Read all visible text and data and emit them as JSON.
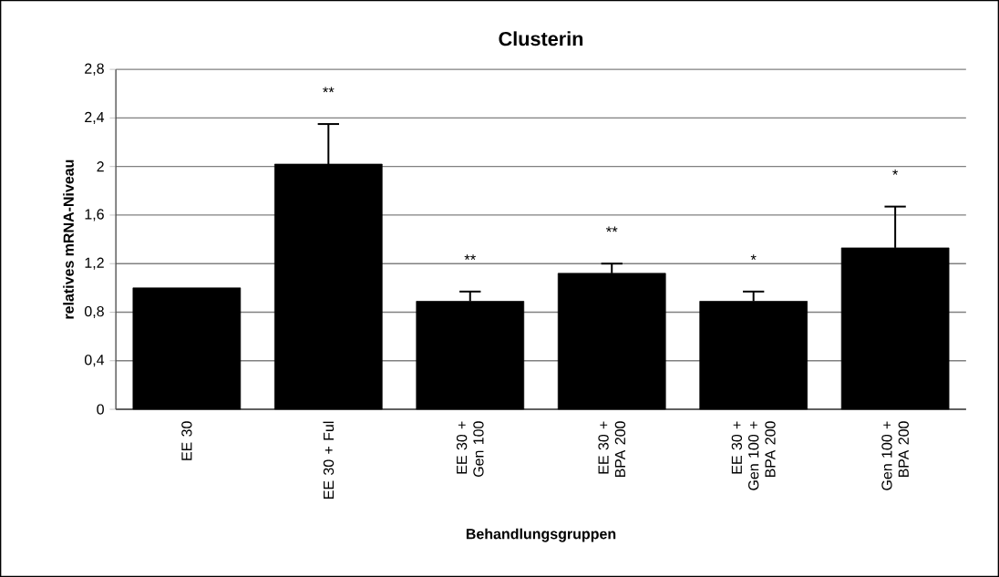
{
  "chart_data": {
    "type": "bar",
    "title": "Clusterin",
    "xlabel": "Behandlungsgruppen",
    "ylabel": "relatives mRNA-Niveau",
    "categories": [
      "EE 30",
      "EE 30 + Ful",
      "EE 30 + Gen 100",
      "EE 30 + BPA 200",
      "EE 30 + Gen 100 + BPA 200",
      "Gen 100 + BPA 200"
    ],
    "values": [
      1.0,
      2.02,
      0.89,
      1.12,
      0.89,
      1.33
    ],
    "errors": [
      null,
      [
        2.02,
        2.35
      ],
      [
        0.89,
        0.97
      ],
      [
        1.12,
        1.2
      ],
      [
        0.89,
        0.97
      ],
      [
        1.33,
        1.67
      ]
    ],
    "color": "#000000",
    "ylim": [
      0,
      2.8
    ],
    "yticks": [
      {
        "value": 0,
        "label": "0"
      },
      {
        "value": 0.4,
        "label": "0,4"
      },
      {
        "value": 0.8,
        "label": "0,8"
      },
      {
        "value": 1.2,
        "label": "1,2"
      },
      {
        "value": 1.6,
        "label": "1,6"
      },
      {
        "value": 2,
        "label": "2"
      },
      {
        "value": 2.4,
        "label": "2,4"
      },
      {
        "value": 2.8,
        "label": "2,8"
      }
    ],
    "grid": "y",
    "annotations": [
      "**",
      "**",
      "**",
      "*",
      "*"
    ]
  }
}
